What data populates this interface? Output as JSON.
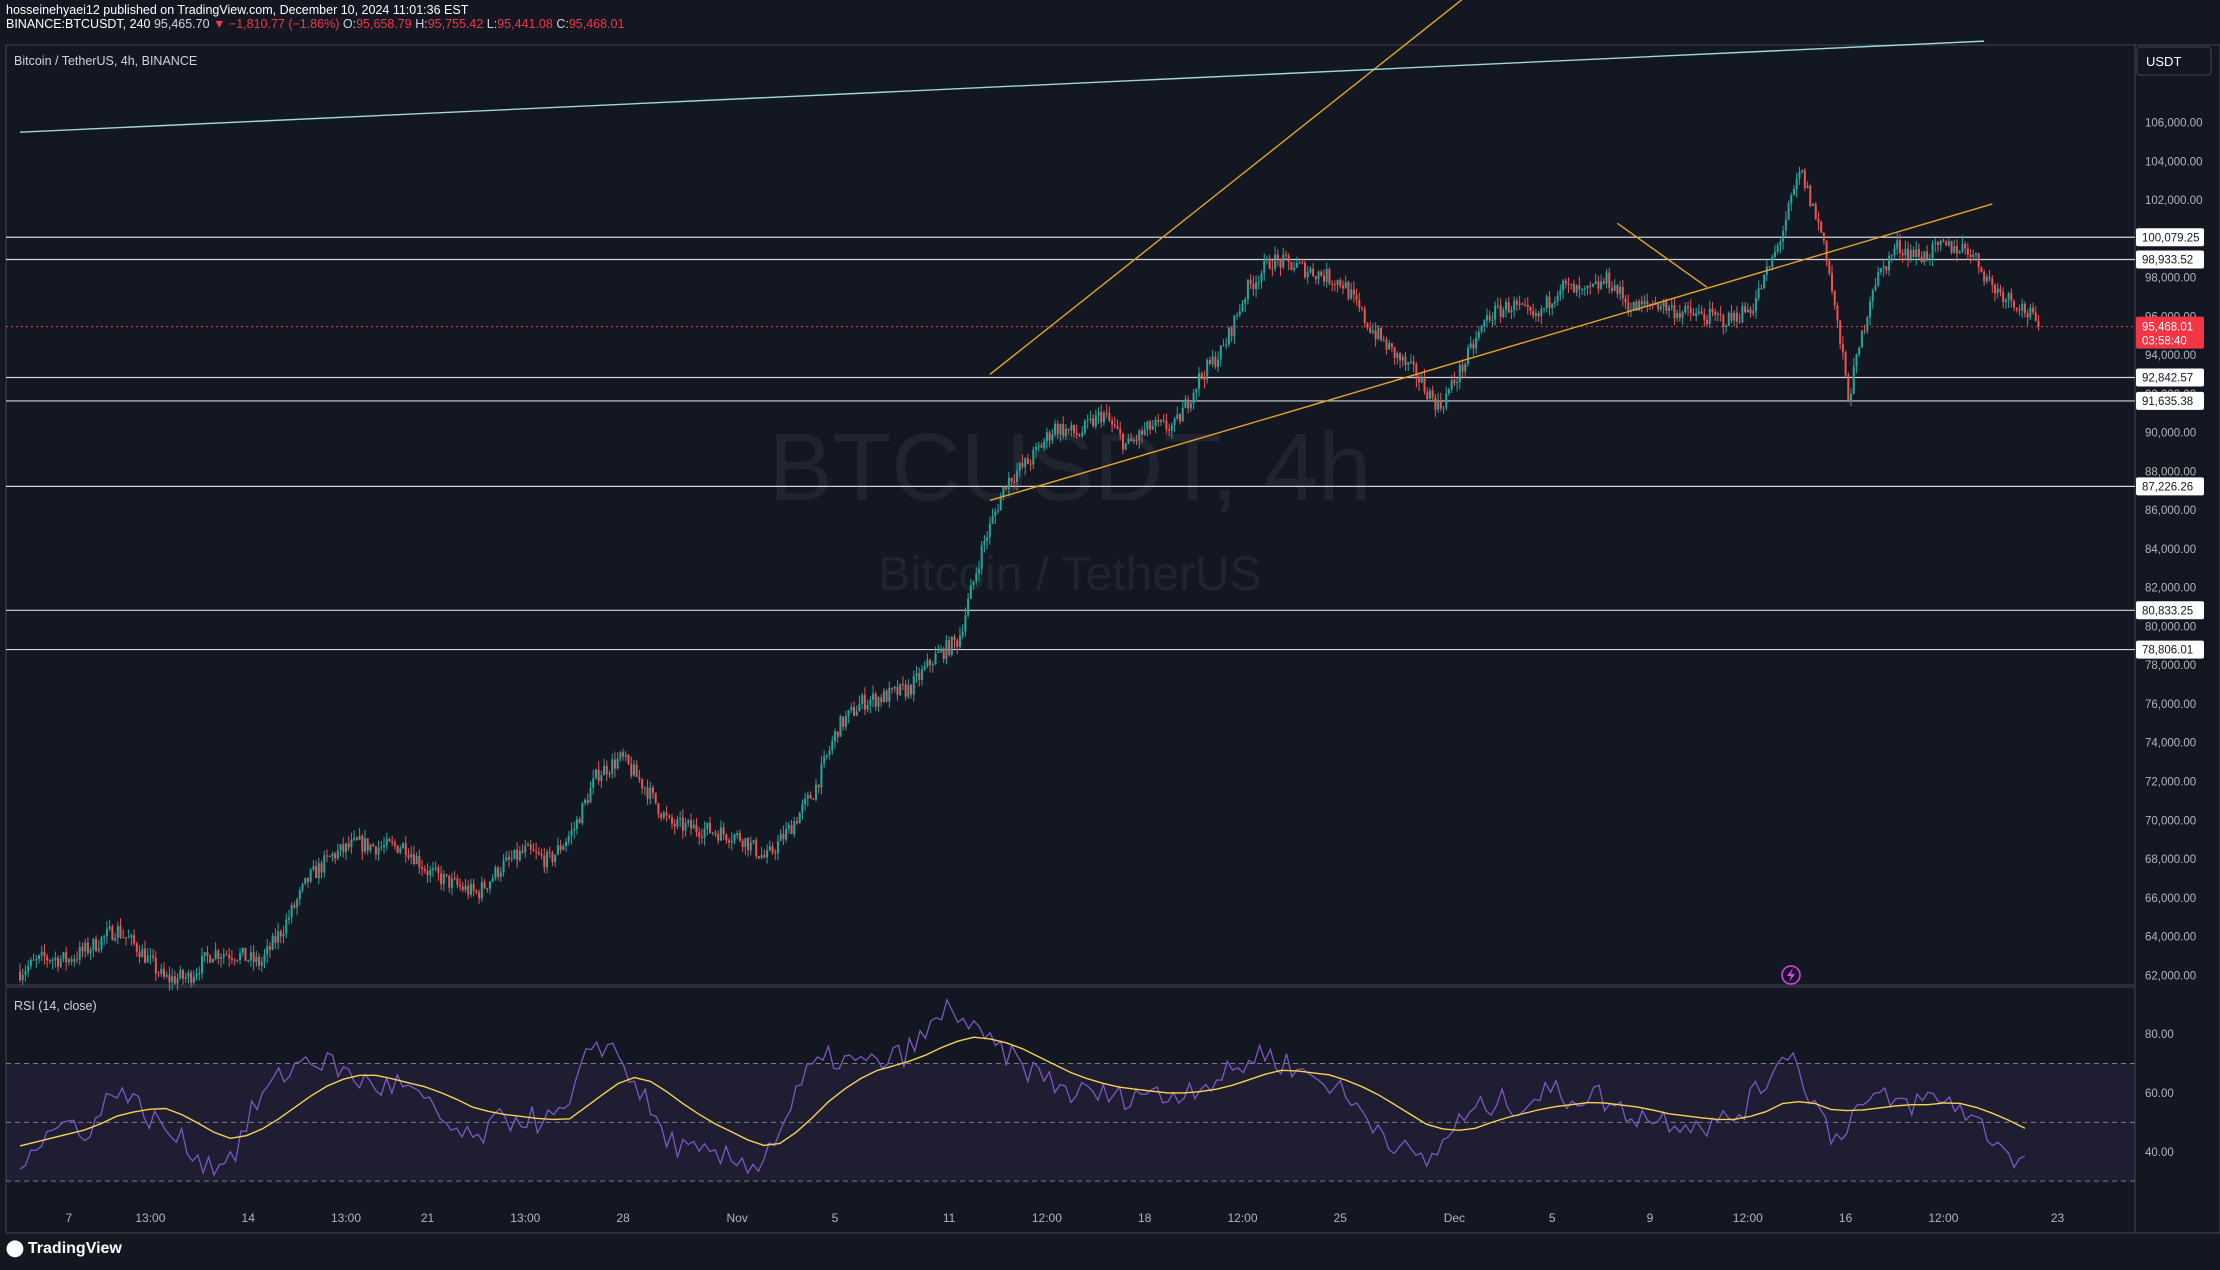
{
  "header": {
    "publisher_line": "hosseinehyaei12 published on TradingView.com, December 10, 2024 11:01:36 EST",
    "symbol": "BINANCE:BTCUSDT, 240",
    "last": "95,465.70",
    "change": "▼ −1,810.77 (−1.86%)",
    "o_label": "O:",
    "o": "95,658.79",
    "h_label": "H:",
    "h": "95,755.42",
    "l_label": "L:",
    "l": "95,441.08",
    "c_label": "C:",
    "c": "95,468.01"
  },
  "pane_title": "Bitcoin / TetherUS, 4h, BINANCE",
  "watermark": {
    "line1": "BTCUSDT, 4h",
    "line2": "Bitcoin / TetherUS"
  },
  "currency_label": "USDT",
  "rsi_title": "RSI (14, close)",
  "footer": {
    "logo_text": "TradingView"
  },
  "colors": {
    "up": "#26a69a",
    "down": "#ef5350",
    "background": "#131722",
    "grid_text": "#b2b5be",
    "trendline": "#e3a42a",
    "rsi": "#7e57c2",
    "rsi_ma": "#f7d154",
    "price_badge": "#f23645"
  },
  "chart_data": [
    {
      "type": "candlestick",
      "title": "Bitcoin / TetherUS, 4h, BINANCE",
      "ylim": [
        61500,
        110000
      ],
      "y_ticks": [
        62000,
        64000,
        66000,
        68000,
        70000,
        72000,
        74000,
        76000,
        78000,
        80000,
        82000,
        84000,
        86000,
        88000,
        90000,
        92000,
        94000,
        96000,
        98000,
        102000,
        104000,
        106000
      ],
      "y_tick_labels": [
        "62,000.00",
        "64,000.00",
        "66,000.00",
        "68,000.00",
        "70,000.00",
        "72,000.00",
        "74,000.00",
        "76,000.00",
        "78,000.00",
        "80,000.00",
        "82,000.00",
        "84,000.00",
        "86,000.00",
        "88,000.00",
        "90,000.00",
        "92,000.00",
        "94,000.00",
        "96,000.00",
        "98,000.00",
        "102,000.00",
        "104,000.00",
        "106,000.00"
      ],
      "x_tick_labels": [
        "7",
        "13:00",
        "14",
        "13:00",
        "21",
        "13:00",
        "28",
        "Nov",
        "5",
        "11",
        "12:00",
        "18",
        "12:00",
        "25",
        "Dec",
        "5",
        "9",
        "12:00",
        "16",
        "12:00",
        "23"
      ],
      "x_ticks": [
        3,
        8,
        14,
        20,
        25,
        31,
        37,
        44,
        50,
        57,
        63,
        69,
        75,
        81,
        88,
        94,
        100,
        106,
        112,
        118,
        125
      ],
      "price_path": [
        62200,
        62900,
        62800,
        63500,
        64400,
        63300,
        61800,
        61900,
        63200,
        63100,
        62600,
        64600,
        67000,
        68200,
        68800,
        68600,
        68700,
        67300,
        66700,
        66200,
        67600,
        68400,
        67900,
        69500,
        72400,
        73200,
        71700,
        69800,
        69600,
        69400,
        69100,
        68000,
        69600,
        71500,
        74800,
        76100,
        76400,
        76800,
        78400,
        79300,
        84100,
        87500,
        88600,
        90300,
        89900,
        91000,
        89300,
        90300,
        90300,
        92800,
        94300,
        97400,
        98900,
        98600,
        98200,
        97700,
        95600,
        94200,
        93000,
        91300,
        93500,
        96000,
        96600,
        95800,
        97600,
        97100,
        97900,
        96400,
        96700,
        96200,
        96000,
        95800,
        96500,
        99400,
        103500,
        99800,
        91800,
        97600,
        99600,
        99100,
        99600,
        99500,
        97500,
        96700,
        95468
      ],
      "price_bar_start": 0,
      "price_bar_end": 123,
      "horizontal_levels": [
        {
          "value": 100079.25,
          "label": "100,079.25"
        },
        {
          "value": 98933.52,
          "label": "98,933.52"
        },
        {
          "value": 92842.57,
          "label": "92,842.57"
        },
        {
          "value": 91635.38,
          "label": "91,635.38"
        },
        {
          "value": 87226.26,
          "label": "87,226.26"
        },
        {
          "value": 80833.25,
          "label": "80,833.25"
        },
        {
          "value": 78806.01,
          "label": "78,806.01"
        }
      ],
      "trendlines": [
        {
          "from": [
            59.5,
            93000
          ],
          "to": [
            89,
            112700
          ],
          "color": "#e3a42a"
        },
        {
          "from": [
            59.5,
            86500
          ],
          "to": [
            121,
            101800
          ],
          "color": "#e3a42a"
        },
        {
          "from": [
            98,
            100800
          ],
          "to": [
            103.5,
            97500
          ],
          "color": "#e3a42a"
        },
        {
          "from": [
            0,
            105500
          ],
          "to": [
            120.5,
            110200
          ],
          "color": "#9fd8e0"
        }
      ],
      "current_price": {
        "value": 95468.01,
        "label": "95,468.01",
        "countdown": "03:58:40"
      }
    },
    {
      "type": "line",
      "title": "RSI (14, close)",
      "ylim": [
        27,
        96
      ],
      "y_ticks": [
        40,
        60,
        80
      ],
      "y_tick_labels": [
        "40.00",
        "60.00",
        "80.00"
      ],
      "bands": {
        "upper": 70,
        "middle": 50,
        "lower": 30
      },
      "series": [
        {
          "name": "RSI",
          "values": [
            38,
            45,
            50,
            47,
            63,
            55,
            48,
            42,
            35,
            40,
            58,
            66,
            72,
            70,
            65,
            62,
            63,
            56,
            48,
            43,
            50,
            52,
            50,
            54,
            78,
            74,
            60,
            45,
            40,
            38,
            37,
            36,
            50,
            67,
            72,
            70,
            70,
            73,
            80,
            90,
            80,
            75,
            69,
            65,
            60,
            60,
            58,
            61,
            58,
            62,
            64,
            68,
            74,
            70,
            66,
            63,
            55,
            48,
            40,
            36,
            48,
            54,
            57,
            56,
            61,
            58,
            60,
            54,
            52,
            51,
            50,
            49,
            53,
            62,
            76,
            60,
            44,
            55,
            58,
            56,
            58,
            57,
            50,
            42,
            36
          ]
        },
        {
          "name": "RSI-based MA",
          "values": [
            42,
            44,
            46,
            48,
            52,
            54,
            55,
            52,
            47,
            44,
            47,
            52,
            58,
            63,
            66,
            66,
            64,
            62,
            59,
            55,
            53,
            52,
            51,
            51,
            57,
            63,
            66,
            61,
            55,
            50,
            46,
            42,
            43,
            50,
            58,
            64,
            68,
            70,
            73,
            77,
            79,
            78,
            75,
            71,
            67,
            64,
            62,
            61,
            60,
            60,
            61,
            63,
            66,
            68,
            67,
            66,
            63,
            59,
            54,
            49,
            47,
            48,
            51,
            53,
            55,
            56,
            57,
            56,
            55,
            53,
            52,
            51,
            51,
            53,
            57,
            57,
            54,
            54,
            55,
            56,
            56,
            57,
            55,
            52,
            48
          ]
        }
      ]
    }
  ]
}
